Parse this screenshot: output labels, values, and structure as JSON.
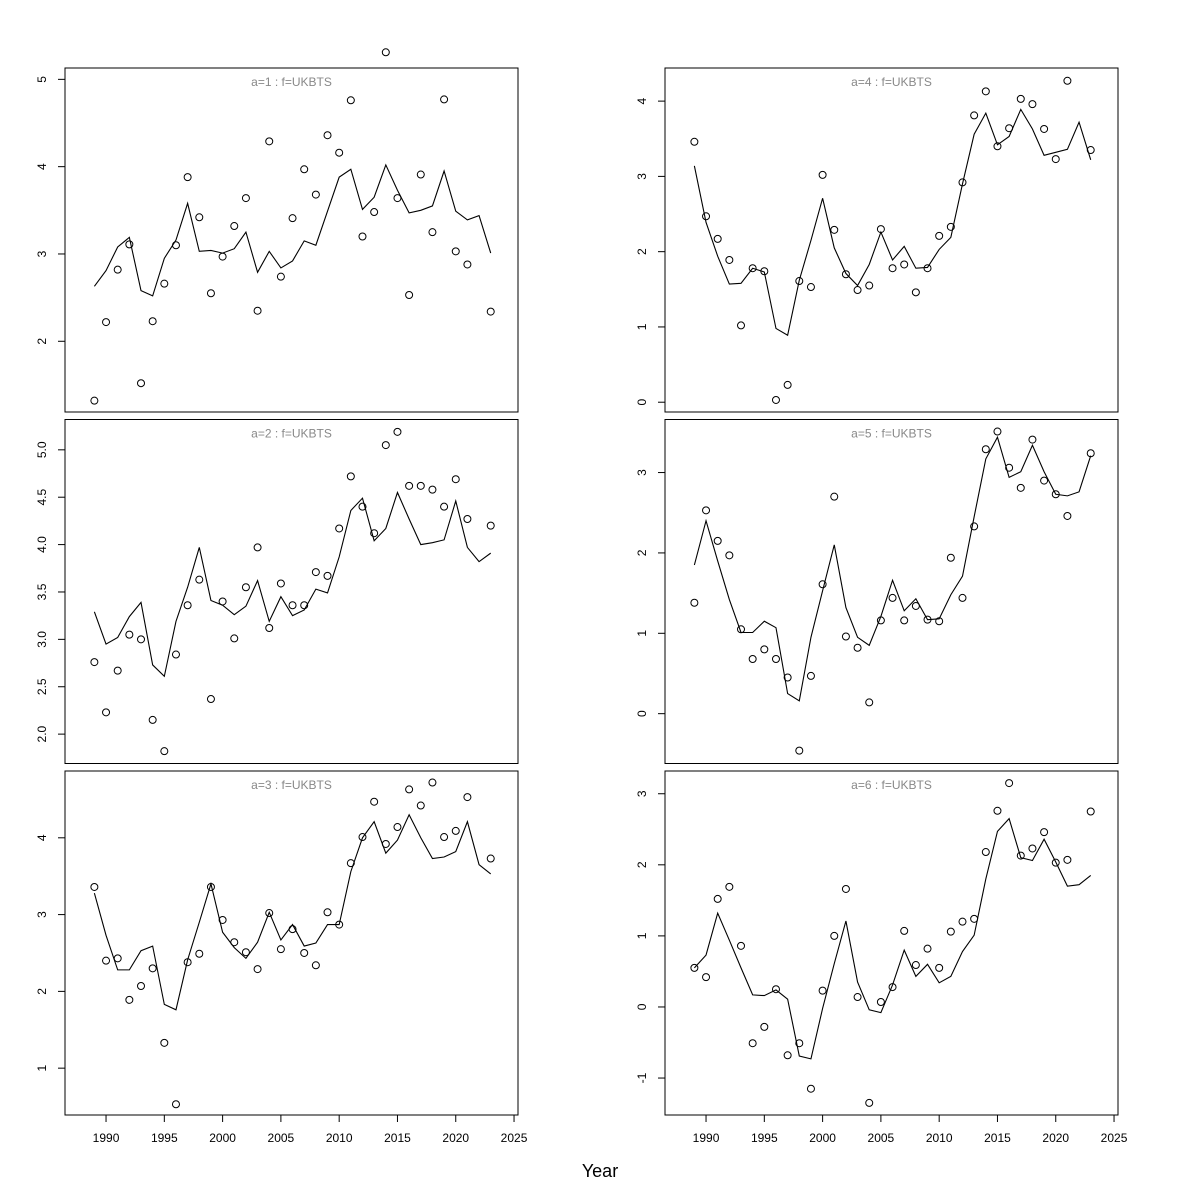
{
  "xlabel": "Year",
  "chart_data": [
    {
      "type": "line",
      "title": "a=1  :  f=UKBTS",
      "x": [
        1989,
        1990,
        1991,
        1992,
        1993,
        1994,
        1995,
        1996,
        1997,
        1998,
        1999,
        2000,
        2001,
        2002,
        2003,
        2004,
        2005,
        2006,
        2007,
        2008,
        2009,
        2010,
        2011,
        2012,
        2013,
        2014,
        2015,
        2016,
        2017,
        2018,
        2019,
        2020,
        2021,
        2022,
        2023
      ],
      "xlim": [
        1986.48,
        2025.34
      ],
      "ylim": [
        1.19,
        5.13
      ],
      "yticks": [
        2,
        3,
        4,
        5
      ],
      "series": [
        {
          "style": "points",
          "color": "#000000",
          "values": [
            1.32,
            2.22,
            2.82,
            3.11,
            1.52,
            2.23,
            2.66,
            3.1,
            3.88,
            3.42,
            2.55,
            2.97,
            3.32,
            3.64,
            2.35,
            4.29,
            2.74,
            3.41,
            3.97,
            3.68,
            4.36,
            4.16,
            4.76,
            3.2,
            3.48,
            5.31,
            3.64,
            2.53,
            3.91,
            3.25,
            4.77,
            3.03,
            2.88,
            null,
            2.34
          ]
        },
        {
          "style": "line",
          "color": "#000000",
          "values": [
            2.63,
            2.81,
            3.08,
            3.19,
            2.58,
            2.52,
            2.95,
            3.16,
            3.58,
            3.03,
            3.04,
            3.01,
            3.06,
            3.25,
            2.79,
            3.03,
            2.84,
            2.92,
            3.15,
            3.1,
            3.49,
            3.88,
            3.97,
            3.51,
            3.65,
            4.02,
            3.73,
            3.47,
            3.5,
            3.55,
            3.95,
            3.49,
            3.39,
            3.44,
            3.01
          ]
        }
      ]
    },
    {
      "type": "line",
      "title": "a=2  :  f=UKBTS",
      "x": [
        1989,
        1990,
        1991,
        1992,
        1993,
        1994,
        1995,
        1996,
        1997,
        1998,
        1999,
        2000,
        2001,
        2002,
        2003,
        2004,
        2005,
        2006,
        2007,
        2008,
        2009,
        2010,
        2011,
        2012,
        2013,
        2014,
        2015,
        2016,
        2017,
        2018,
        2019,
        2020,
        2021,
        2022,
        2023
      ],
      "xlim": [
        1986.48,
        2025.34
      ],
      "ylim": [
        1.69,
        5.32
      ],
      "yticks": [
        {
          "value": 2,
          "label": "2.0"
        },
        {
          "value": 2.5,
          "label": "2.5"
        },
        {
          "value": 3,
          "label": "3.0"
        },
        {
          "value": 3.5,
          "label": "3.5"
        },
        {
          "value": 4,
          "label": "4.0"
        },
        {
          "value": 4.5,
          "label": "4.5"
        },
        {
          "value": 5,
          "label": "5.0"
        }
      ],
      "series": [
        {
          "style": "points",
          "color": "#000000",
          "values": [
            2.76,
            2.23,
            2.67,
            3.05,
            3.0,
            2.15,
            1.82,
            2.84,
            3.36,
            3.63,
            2.37,
            3.4,
            3.01,
            3.55,
            3.97,
            3.12,
            3.59,
            3.36,
            3.36,
            3.71,
            3.67,
            4.17,
            4.72,
            4.4,
            4.12,
            5.05,
            5.19,
            4.62,
            4.62,
            4.58,
            4.4,
            4.69,
            4.27,
            null,
            4.2
          ]
        },
        {
          "style": "line",
          "color": "#000000",
          "values": [
            3.29,
            2.95,
            3.02,
            3.24,
            3.39,
            2.73,
            2.61,
            3.19,
            3.55,
            3.97,
            3.41,
            3.36,
            3.26,
            3.35,
            3.62,
            3.19,
            3.45,
            3.25,
            3.31,
            3.53,
            3.49,
            3.87,
            4.36,
            4.49,
            4.04,
            4.17,
            4.55,
            4.27,
            4.0,
            4.02,
            4.05,
            4.46,
            3.97,
            3.82,
            3.91
          ]
        }
      ]
    },
    {
      "type": "line",
      "title": "a=3  :  f=UKBTS",
      "x": [
        1989,
        1990,
        1991,
        1992,
        1993,
        1994,
        1995,
        1996,
        1997,
        1998,
        1999,
        2000,
        2001,
        2002,
        2003,
        2004,
        2005,
        2006,
        2007,
        2008,
        2009,
        2010,
        2011,
        2012,
        2013,
        2014,
        2015,
        2016,
        2017,
        2018,
        2019,
        2020,
        2021,
        2022,
        2023
      ],
      "xlim": [
        1986.48,
        2025.34
      ],
      "xticks": [
        1990,
        1995,
        2000,
        2005,
        2010,
        2015,
        2020,
        2025
      ],
      "ylim": [
        0.39,
        4.87
      ],
      "yticks": [
        1,
        2,
        3,
        4
      ],
      "series": [
        {
          "style": "points",
          "color": "#000000",
          "values": [
            3.36,
            2.4,
            2.43,
            1.89,
            2.07,
            2.3,
            1.33,
            0.53,
            2.38,
            2.49,
            3.36,
            2.93,
            2.64,
            2.51,
            2.29,
            3.02,
            2.55,
            2.81,
            2.5,
            2.34,
            3.03,
            2.87,
            3.67,
            4.01,
            4.47,
            3.92,
            4.14,
            4.63,
            4.42,
            4.72,
            4.01,
            4.09,
            4.53,
            null,
            3.73
          ]
        },
        {
          "style": "line",
          "color": "#000000",
          "values": [
            3.28,
            2.73,
            2.28,
            2.28,
            2.53,
            2.59,
            1.83,
            1.76,
            2.41,
            2.9,
            3.4,
            2.77,
            2.57,
            2.43,
            2.64,
            3.03,
            2.67,
            2.87,
            2.59,
            2.63,
            2.87,
            2.87,
            3.56,
            4.0,
            4.21,
            3.8,
            3.97,
            4.3,
            4.0,
            3.73,
            3.75,
            3.82,
            4.21,
            3.65,
            3.53
          ]
        }
      ]
    },
    {
      "type": "line",
      "title": "a=4  :  f=UKBTS",
      "x": [
        1989,
        1990,
        1991,
        1992,
        1993,
        1994,
        1995,
        1996,
        1997,
        1998,
        1999,
        2000,
        2001,
        2002,
        2003,
        2004,
        2005,
        2006,
        2007,
        2008,
        2009,
        2010,
        2011,
        2012,
        2013,
        2014,
        2015,
        2016,
        2017,
        2018,
        2019,
        2020,
        2021,
        2022,
        2023
      ],
      "xlim": [
        1986.48,
        2025.34
      ],
      "ylim": [
        -0.13,
        4.44
      ],
      "yticks": [
        0,
        1,
        2,
        3,
        4
      ],
      "series": [
        {
          "style": "points",
          "color": "#000000",
          "values": [
            3.46,
            2.47,
            2.17,
            1.89,
            1.02,
            1.78,
            1.74,
            0.03,
            0.23,
            1.61,
            1.53,
            3.02,
            2.29,
            1.7,
            1.49,
            1.55,
            2.3,
            1.78,
            1.83,
            1.46,
            1.78,
            2.21,
            2.33,
            2.92,
            3.81,
            4.13,
            3.4,
            3.64,
            4.03,
            3.96,
            3.63,
            3.23,
            4.27,
            null,
            3.35
          ]
        },
        {
          "style": "line",
          "color": "#000000",
          "values": [
            3.14,
            2.39,
            1.94,
            1.57,
            1.58,
            1.78,
            1.73,
            0.98,
            0.89,
            1.62,
            2.15,
            2.71,
            2.05,
            1.71,
            1.55,
            1.83,
            2.26,
            1.89,
            2.07,
            1.78,
            1.79,
            2.03,
            2.19,
            2.9,
            3.56,
            3.84,
            3.42,
            3.53,
            3.89,
            3.63,
            3.28,
            3.32,
            3.36,
            3.72,
            3.22
          ]
        }
      ]
    },
    {
      "type": "line",
      "title": "a=5  :  f=UKBTS",
      "x": [
        1989,
        1990,
        1991,
        1992,
        1993,
        1994,
        1995,
        1996,
        1997,
        1998,
        1999,
        2000,
        2001,
        2002,
        2003,
        2004,
        2005,
        2006,
        2007,
        2008,
        2009,
        2010,
        2011,
        2012,
        2013,
        2014,
        2015,
        2016,
        2017,
        2018,
        2019,
        2020,
        2021,
        2022,
        2023
      ],
      "xlim": [
        1986.48,
        2025.34
      ],
      "ylim": [
        -0.62,
        3.66
      ],
      "yticks": [
        0,
        1,
        2,
        3
      ],
      "series": [
        {
          "style": "points",
          "color": "#000000",
          "values": [
            1.38,
            2.53,
            2.15,
            1.97,
            1.05,
            0.68,
            0.8,
            0.68,
            0.45,
            -0.46,
            0.47,
            1.61,
            2.7,
            0.96,
            0.82,
            0.14,
            1.16,
            1.44,
            1.16,
            1.34,
            1.17,
            1.15,
            1.94,
            1.44,
            2.33,
            3.29,
            3.51,
            3.06,
            2.81,
            3.41,
            2.9,
            2.73,
            2.46,
            null,
            3.24
          ]
        },
        {
          "style": "line",
          "color": "#000000",
          "values": [
            1.85,
            2.4,
            1.9,
            1.42,
            1.01,
            1.01,
            1.15,
            1.07,
            0.25,
            0.16,
            0.95,
            1.53,
            2.1,
            1.32,
            0.95,
            0.85,
            1.21,
            1.66,
            1.28,
            1.43,
            1.17,
            1.18,
            1.48,
            1.71,
            2.45,
            3.17,
            3.44,
            2.94,
            3.01,
            3.34,
            3.01,
            2.73,
            2.71,
            2.76,
            3.21
          ]
        }
      ]
    },
    {
      "type": "line",
      "title": "a=6  :  f=UKBTS",
      "x": [
        1989,
        1990,
        1991,
        1992,
        1993,
        1994,
        1995,
        1996,
        1997,
        1998,
        1999,
        2000,
        2001,
        2002,
        2003,
        2004,
        2005,
        2006,
        2007,
        2008,
        2009,
        2010,
        2011,
        2012,
        2013,
        2014,
        2015,
        2016,
        2017,
        2018,
        2019,
        2020,
        2021,
        2022,
        2023
      ],
      "xlim": [
        1986.48,
        2025.34
      ],
      "xticks": [
        1990,
        1995,
        2000,
        2005,
        2010,
        2015,
        2020,
        2025
      ],
      "ylim": [
        -1.52,
        3.32
      ],
      "yticks": [
        -1,
        0,
        1,
        2,
        3
      ],
      "series": [
        {
          "style": "points",
          "color": "#000000",
          "values": [
            0.55,
            0.42,
            1.52,
            1.69,
            0.86,
            -0.51,
            -0.28,
            0.25,
            -0.68,
            -0.51,
            -1.15,
            0.23,
            1.0,
            1.66,
            0.14,
            -1.35,
            0.07,
            0.28,
            1.07,
            0.59,
            0.82,
            0.55,
            1.06,
            1.2,
            1.24,
            2.18,
            2.76,
            3.15,
            2.13,
            2.23,
            2.46,
            2.03,
            2.07,
            null,
            2.75
          ]
        },
        {
          "style": "line",
          "color": "#000000",
          "values": [
            0.55,
            0.73,
            1.32,
            0.94,
            0.55,
            0.17,
            0.16,
            0.24,
            0.11,
            -0.69,
            -0.73,
            -0.02,
            0.61,
            1.21,
            0.35,
            -0.04,
            -0.08,
            0.31,
            0.8,
            0.43,
            0.6,
            0.34,
            0.43,
            0.78,
            1.01,
            1.8,
            2.47,
            2.65,
            2.1,
            2.06,
            2.36,
            2.04,
            1.7,
            1.72,
            1.85
          ]
        }
      ]
    }
  ]
}
